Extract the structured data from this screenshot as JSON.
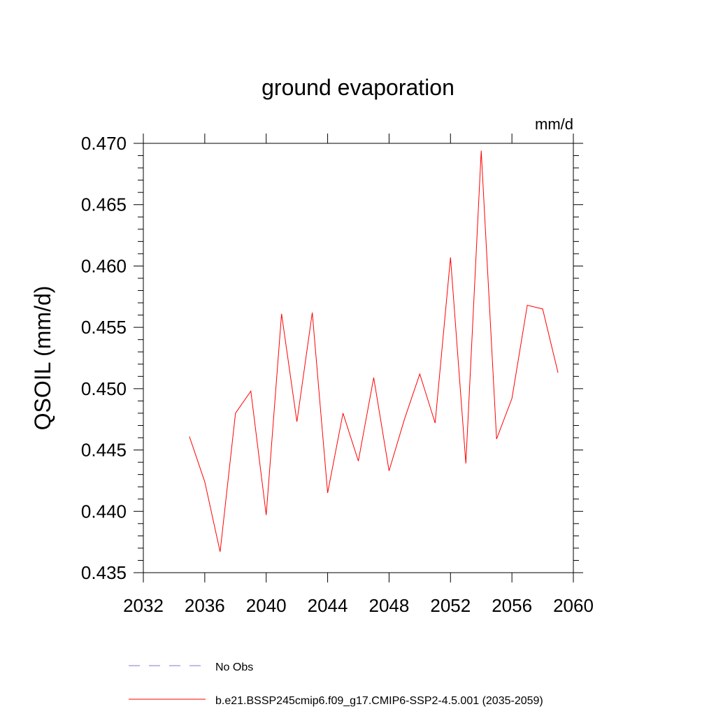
{
  "chart_data": {
    "type": "line",
    "title": "ground evaporation",
    "units_label": "mm/d",
    "ylabel": "QSOIL  (mm/d)",
    "xlabel": "",
    "xlim": [
      2032,
      2060
    ],
    "ylim": [
      0.435,
      0.47
    ],
    "xticks": [
      2032,
      2036,
      2040,
      2044,
      2048,
      2052,
      2056,
      2060
    ],
    "yticks": [
      "0.435",
      "0.440",
      "0.445",
      "0.450",
      "0.455",
      "0.460",
      "0.465",
      "0.470"
    ],
    "grid": false,
    "series": [
      {
        "name": "b.e21.BSSP245cmip6.f09_g17.CMIP6-SSP2-4.5.001 (2035-2059)",
        "color": "#ff0000",
        "style": "solid",
        "x": [
          2035,
          2036,
          2037,
          2038,
          2039,
          2040,
          2041,
          2042,
          2043,
          2044,
          2045,
          2046,
          2047,
          2048,
          2049,
          2050,
          2051,
          2052,
          2053,
          2054,
          2055,
          2056,
          2057,
          2058,
          2059
        ],
        "y": [
          0.4461,
          0.4424,
          0.4367,
          0.448,
          0.4498,
          0.4397,
          0.4561,
          0.4473,
          0.4562,
          0.4415,
          0.448,
          0.4441,
          0.4509,
          0.4433,
          0.4475,
          0.4512,
          0.4472,
          0.4607,
          0.4439,
          0.4694,
          0.4459,
          0.4492,
          0.4568,
          0.4565,
          0.4513
        ]
      }
    ],
    "legend": [
      {
        "label": "No Obs",
        "color": "#7b7bd6",
        "style": "dashed"
      },
      {
        "label": "b.e21.BSSP245cmip6.f09_g17.CMIP6-SSP2-4.5.001 (2035-2059)",
        "color": "#ff0000",
        "style": "solid"
      }
    ],
    "legend_position": "bottom-left"
  }
}
